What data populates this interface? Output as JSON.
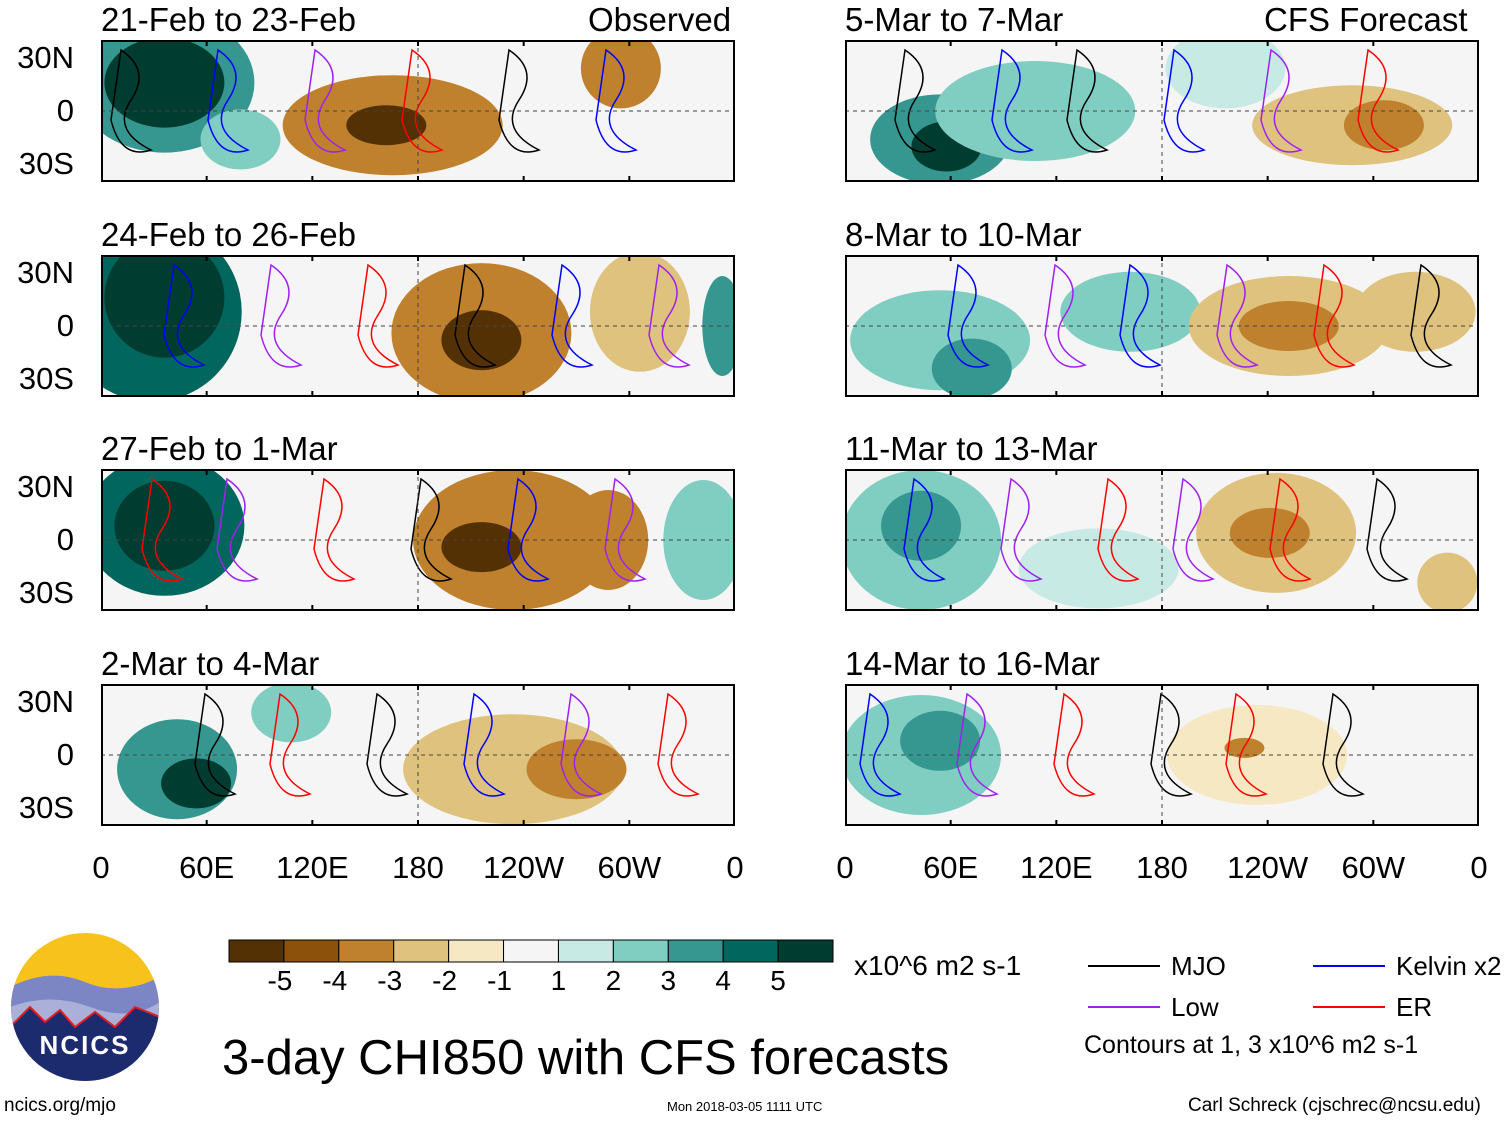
{
  "chart_data": {
    "type": "heatmap",
    "title": "3-day CHI850 with CFS forecasts",
    "column_headers": {
      "left": "Observed",
      "right": "CFS Forecast"
    },
    "panels": [
      {
        "period": "21-Feb to 23-Feb",
        "kind": "observed"
      },
      {
        "period": "24-Feb to 26-Feb",
        "kind": "observed"
      },
      {
        "period": "27-Feb to 1-Mar",
        "kind": "observed"
      },
      {
        "period": "2-Mar to 4-Mar",
        "kind": "observed"
      },
      {
        "period": "5-Mar to 7-Mar",
        "kind": "forecast"
      },
      {
        "period": "8-Mar to 10-Mar",
        "kind": "forecast"
      },
      {
        "period": "11-Mar to 13-Mar",
        "kind": "forecast"
      },
      {
        "period": "14-Mar to 16-Mar",
        "kind": "forecast"
      }
    ],
    "y_ticks": [
      "30N",
      "0",
      "30S"
    ],
    "x_ticks": [
      "0",
      "60E",
      "120E",
      "180",
      "120W",
      "60W",
      "0"
    ],
    "colorbar": {
      "levels": [
        "-5",
        "-4",
        "-3",
        "-2",
        "-1",
        "1",
        "2",
        "3",
        "4",
        "5"
      ],
      "colors": [
        "#543005",
        "#8c510a",
        "#bf812d",
        "#dfc27d",
        "#f6e8c3",
        "#f5f5f5",
        "#c7eae5",
        "#80cdc1",
        "#35978f",
        "#01665e",
        "#003c30"
      ],
      "units": "x10^6 m2 s-1"
    },
    "legend": [
      {
        "label": "MJO",
        "color": "#000000"
      },
      {
        "label": "Kelvin x2",
        "color": "#0000ff"
      },
      {
        "label": "Low",
        "color": "#a020f0"
      },
      {
        "label": "ER",
        "color": "#ff0000"
      }
    ],
    "contour_note": "Contours at 1, 3 x10^6 m2 s-1"
  },
  "footer": {
    "logo_text": "NCICS",
    "site": "ncics.org/mjo",
    "timestamp": "Mon 2018-03-05 1111 UTC",
    "author": "Carl Schreck (cjschrec@ncsu.edu)"
  }
}
